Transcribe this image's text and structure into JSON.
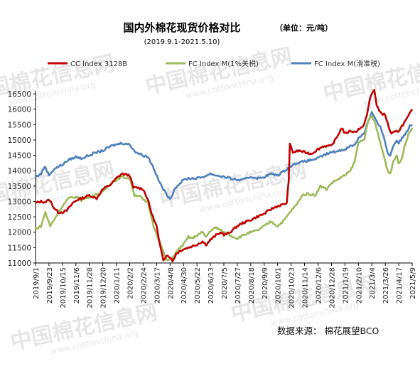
{
  "title": "国内外棉花现货价格对比",
  "unit": "（单位：元/吨）",
  "subtitle": "(2019.9.1-2021.5.10)",
  "source": "数据来源：  棉花展望BCO",
  "watermark": {
    "brand": "中国棉花信息网",
    "url": "www.cottonchina.org"
  },
  "chart_data": {
    "type": "line",
    "title": "国内外棉花现货价格对比",
    "subtitle": "(2019.9.1-2021.5.10)",
    "unit": "元/吨",
    "ylim": [
      11000,
      16500
    ],
    "yticks": [
      11000,
      11500,
      12000,
      12500,
      13000,
      13500,
      14000,
      14500,
      15000,
      15500,
      16000,
      16500
    ],
    "xlim": [
      "2019-09-01",
      "2021-05-09"
    ],
    "x_tick_labels": [
      "2019/9/1",
      "2019/9/23",
      "2019/10/15",
      "2019/11/6",
      "2019/11/28",
      "2019/12/20",
      "2020/1/11",
      "2020/2/2",
      "2020/2/24",
      "2020/3/17",
      "2020/4/8",
      "2020/4/30",
      "2020/5/22",
      "2020/6/13",
      "2020/7/5",
      "2020/7/27",
      "2020/8/18",
      "2020/9/9",
      "2020/10/1",
      "2020/10/23",
      "2020/11/14",
      "2020/12/6",
      "2020/12/28",
      "2021/1/19",
      "2021/2/10",
      "2021/3/4",
      "2021/3/26",
      "2021/4/17",
      "2021/5/9"
    ],
    "grid": false,
    "legend": "top",
    "series": [
      {
        "name": "CC Index 3128B",
        "color": "#c00000",
        "points": [
          [
            "2019-09-01",
            12950
          ],
          [
            "2019-09-10",
            13000
          ],
          [
            "2019-09-16",
            12980
          ],
          [
            "2019-09-24",
            13050
          ],
          [
            "2019-10-01",
            12800
          ],
          [
            "2019-10-08",
            12650
          ],
          [
            "2019-10-15",
            12650
          ],
          [
            "2019-10-22",
            12700
          ],
          [
            "2019-11-01",
            12950
          ],
          [
            "2019-11-08",
            13050
          ],
          [
            "2019-11-15",
            13100
          ],
          [
            "2019-11-28",
            13200
          ],
          [
            "2019-12-10",
            13100
          ],
          [
            "2019-12-20",
            13400
          ],
          [
            "2020-01-02",
            13550
          ],
          [
            "2020-01-11",
            13750
          ],
          [
            "2020-01-20",
            13900
          ],
          [
            "2020-02-02",
            13850
          ],
          [
            "2020-02-08",
            13450
          ],
          [
            "2020-02-15",
            13450
          ],
          [
            "2020-02-24",
            13400
          ],
          [
            "2020-03-02",
            13100
          ],
          [
            "2020-03-09",
            12600
          ],
          [
            "2020-03-17",
            12200
          ],
          [
            "2020-03-22",
            11600
          ],
          [
            "2020-03-28",
            11100
          ],
          [
            "2020-04-02",
            11250
          ],
          [
            "2020-04-08",
            11200
          ],
          [
            "2020-04-12",
            11050
          ],
          [
            "2020-04-18",
            11300
          ],
          [
            "2020-04-25",
            11400
          ],
          [
            "2020-04-30",
            11450
          ],
          [
            "2020-05-08",
            11500
          ],
          [
            "2020-05-15",
            11550
          ],
          [
            "2020-05-22",
            11600
          ],
          [
            "2020-05-31",
            11700
          ],
          [
            "2020-06-06",
            11600
          ],
          [
            "2020-06-13",
            11750
          ],
          [
            "2020-06-22",
            11900
          ],
          [
            "2020-07-01",
            12000
          ],
          [
            "2020-07-05",
            11900
          ],
          [
            "2020-07-15",
            12000
          ],
          [
            "2020-07-27",
            12200
          ],
          [
            "2020-08-05",
            12300
          ],
          [
            "2020-08-18",
            12400
          ],
          [
            "2020-08-28",
            12500
          ],
          [
            "2020-09-09",
            12600
          ],
          [
            "2020-09-20",
            12750
          ],
          [
            "2020-10-01",
            12850
          ],
          [
            "2020-10-10",
            12900
          ],
          [
            "2020-10-16",
            12950
          ],
          [
            "2020-10-19",
            13700
          ],
          [
            "2020-10-21",
            14850
          ],
          [
            "2020-10-26",
            14600
          ],
          [
            "2020-11-05",
            14650
          ],
          [
            "2020-11-14",
            14600
          ],
          [
            "2020-11-25",
            14550
          ],
          [
            "2020-12-06",
            14700
          ],
          [
            "2020-12-15",
            14800
          ],
          [
            "2020-12-28",
            14800
          ],
          [
            "2021-01-06",
            15100
          ],
          [
            "2021-01-14",
            15400
          ],
          [
            "2021-01-19",
            15200
          ],
          [
            "2021-01-28",
            15300
          ],
          [
            "2021-02-05",
            15250
          ],
          [
            "2021-02-10",
            15350
          ],
          [
            "2021-02-17",
            15400
          ],
          [
            "2021-02-24",
            15800
          ],
          [
            "2021-03-01",
            16350
          ],
          [
            "2021-03-04",
            16500
          ],
          [
            "2021-03-08",
            16650
          ],
          [
            "2021-03-12",
            16100
          ],
          [
            "2021-03-18",
            15900
          ],
          [
            "2021-03-26",
            15800
          ],
          [
            "2021-04-01",
            15400
          ],
          [
            "2021-04-05",
            15200
          ],
          [
            "2021-04-10",
            15250
          ],
          [
            "2021-04-17",
            15300
          ],
          [
            "2021-04-24",
            15500
          ],
          [
            "2021-05-01",
            15700
          ],
          [
            "2021-05-05",
            15850
          ],
          [
            "2021-05-09",
            16000
          ]
        ]
      },
      {
        "name": "FC Index M(1%关税)",
        "color": "#9bbb59",
        "points": [
          [
            "2019-09-01",
            12100
          ],
          [
            "2019-09-10",
            12200
          ],
          [
            "2019-09-17",
            12650
          ],
          [
            "2019-09-25",
            12200
          ],
          [
            "2019-10-01",
            12400
          ],
          [
            "2019-10-15",
            12850
          ],
          [
            "2019-10-25",
            13100
          ],
          [
            "2019-11-06",
            13150
          ],
          [
            "2019-11-15",
            13050
          ],
          [
            "2019-11-28",
            13150
          ],
          [
            "2019-12-05",
            13200
          ],
          [
            "2019-12-20",
            13300
          ],
          [
            "2020-01-02",
            13600
          ],
          [
            "2020-01-11",
            13700
          ],
          [
            "2020-01-20",
            13800
          ],
          [
            "2020-02-02",
            13750
          ],
          [
            "2020-02-10",
            13200
          ],
          [
            "2020-02-18",
            13200
          ],
          [
            "2020-02-24",
            13050
          ],
          [
            "2020-03-03",
            12950
          ],
          [
            "2020-03-12",
            12200
          ],
          [
            "2020-03-20",
            11800
          ],
          [
            "2020-03-28",
            11350
          ],
          [
            "2020-04-02",
            11100
          ],
          [
            "2020-04-08",
            11100
          ],
          [
            "2020-04-15",
            11250
          ],
          [
            "2020-04-22",
            11450
          ],
          [
            "2020-04-30",
            11600
          ],
          [
            "2020-05-08",
            11850
          ],
          [
            "2020-05-15",
            11800
          ],
          [
            "2020-05-22",
            11900
          ],
          [
            "2020-05-31",
            12000
          ],
          [
            "2020-06-06",
            11850
          ],
          [
            "2020-06-13",
            12050
          ],
          [
            "2020-06-22",
            12150
          ],
          [
            "2020-07-01",
            12050
          ],
          [
            "2020-07-05",
            12000
          ],
          [
            "2020-07-15",
            11900
          ],
          [
            "2020-07-27",
            11800
          ],
          [
            "2020-08-05",
            11900
          ],
          [
            "2020-08-18",
            12000
          ],
          [
            "2020-08-28",
            12050
          ],
          [
            "2020-09-09",
            12200
          ],
          [
            "2020-09-20",
            12350
          ],
          [
            "2020-10-01",
            12200
          ],
          [
            "2020-10-12",
            12400
          ],
          [
            "2020-10-23",
            12700
          ],
          [
            "2020-11-01",
            12900
          ],
          [
            "2020-11-10",
            13200
          ],
          [
            "2020-11-20",
            13250
          ],
          [
            "2020-12-01",
            13200
          ],
          [
            "2020-12-10",
            13500
          ],
          [
            "2020-12-20",
            13400
          ],
          [
            "2020-12-28",
            13600
          ],
          [
            "2021-01-10",
            13750
          ],
          [
            "2021-01-19",
            13850
          ],
          [
            "2021-01-28",
            14000
          ],
          [
            "2021-02-04",
            14300
          ],
          [
            "2021-02-10",
            14900
          ],
          [
            "2021-02-20",
            15050
          ],
          [
            "2021-02-26",
            15600
          ],
          [
            "2021-03-04",
            15800
          ],
          [
            "2021-03-10",
            15500
          ],
          [
            "2021-03-18",
            14900
          ],
          [
            "2021-03-24",
            14450
          ],
          [
            "2021-03-30",
            14000
          ],
          [
            "2021-04-03",
            13900
          ],
          [
            "2021-04-08",
            14300
          ],
          [
            "2021-04-14",
            14500
          ],
          [
            "2021-04-17",
            14200
          ],
          [
            "2021-04-22",
            14400
          ],
          [
            "2021-04-28",
            14900
          ],
          [
            "2021-05-03",
            15200
          ],
          [
            "2021-05-09",
            15400
          ]
        ]
      },
      {
        "name": "FC Index M(滑准税)",
        "color": "#4f81bd",
        "points": [
          [
            "2019-09-01",
            13800
          ],
          [
            "2019-09-10",
            13900
          ],
          [
            "2019-09-16",
            14150
          ],
          [
            "2019-09-23",
            13850
          ],
          [
            "2019-10-01",
            14050
          ],
          [
            "2019-10-15",
            14200
          ],
          [
            "2019-10-25",
            14350
          ],
          [
            "2019-11-06",
            14450
          ],
          [
            "2019-11-15",
            14400
          ],
          [
            "2019-11-28",
            14500
          ],
          [
            "2019-12-10",
            14600
          ],
          [
            "2019-12-20",
            14650
          ],
          [
            "2020-01-02",
            14800
          ],
          [
            "2020-01-11",
            14850
          ],
          [
            "2020-01-20",
            14900
          ],
          [
            "2020-02-02",
            14850
          ],
          [
            "2020-02-12",
            14600
          ],
          [
            "2020-02-24",
            14500
          ],
          [
            "2020-03-03",
            14450
          ],
          [
            "2020-03-12",
            14100
          ],
          [
            "2020-03-20",
            13700
          ],
          [
            "2020-03-28",
            13400
          ],
          [
            "2020-04-08",
            13050
          ],
          [
            "2020-04-15",
            13400
          ],
          [
            "2020-04-22",
            13550
          ],
          [
            "2020-04-30",
            13700
          ],
          [
            "2020-05-08",
            13750
          ],
          [
            "2020-05-22",
            13750
          ],
          [
            "2020-06-01",
            13800
          ],
          [
            "2020-06-13",
            13900
          ],
          [
            "2020-06-22",
            13850
          ],
          [
            "2020-07-05",
            13800
          ],
          [
            "2020-07-15",
            13750
          ],
          [
            "2020-07-27",
            13700
          ],
          [
            "2020-08-05",
            13700
          ],
          [
            "2020-08-18",
            13800
          ],
          [
            "2020-09-01",
            13750
          ],
          [
            "2020-09-09",
            13800
          ],
          [
            "2020-09-20",
            13900
          ],
          [
            "2020-10-01",
            13850
          ],
          [
            "2020-10-12",
            14000
          ],
          [
            "2020-10-23",
            14150
          ],
          [
            "2020-11-01",
            14250
          ],
          [
            "2020-11-14",
            14300
          ],
          [
            "2020-11-25",
            14350
          ],
          [
            "2020-12-06",
            14400
          ],
          [
            "2020-12-15",
            14500
          ],
          [
            "2020-12-28",
            14600
          ],
          [
            "2021-01-10",
            14650
          ],
          [
            "2021-01-19",
            14700
          ],
          [
            "2021-01-28",
            14800
          ],
          [
            "2021-02-04",
            14850
          ],
          [
            "2021-02-10",
            15050
          ],
          [
            "2021-02-20",
            15250
          ],
          [
            "2021-02-26",
            15600
          ],
          [
            "2021-03-04",
            15900
          ],
          [
            "2021-03-10",
            15650
          ],
          [
            "2021-03-18",
            15400
          ],
          [
            "2021-03-24",
            15100
          ],
          [
            "2021-03-30",
            14550
          ],
          [
            "2021-04-03",
            14500
          ],
          [
            "2021-04-08",
            14800
          ],
          [
            "2021-04-14",
            15000
          ],
          [
            "2021-04-17",
            14900
          ],
          [
            "2021-04-24",
            15100
          ],
          [
            "2021-05-01",
            15300
          ],
          [
            "2021-05-05",
            15450
          ],
          [
            "2021-05-09",
            15500
          ]
        ]
      }
    ]
  }
}
